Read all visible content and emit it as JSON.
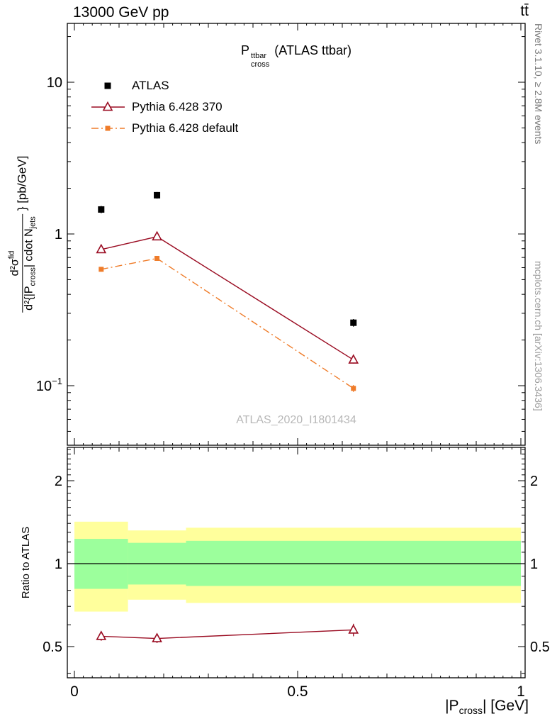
{
  "header": {
    "left": "13000 GeV pp",
    "right": "tt̄"
  },
  "credits": {
    "rivet": "Rivet 3.1.10, ≥ 2.8M events",
    "mcplots": "mcplots.cern.ch [arXiv:1306.3436]"
  },
  "colors": {
    "atlas": "#000000",
    "pythia370": "#9a0c22",
    "pythia_default": "#ef7c2a",
    "band_yellow": "#ffff9c",
    "band_green": "#9cff9c",
    "watermark": "#b8b8b8"
  },
  "main_plot": {
    "title": {
      "base": "P",
      "sup": "ttbar",
      "sub": "cross",
      "suffix": " (ATLAS ttbar)"
    },
    "watermark": "ATLAS_2020_I1801434",
    "ylabel": {
      "numerator": "d²σ",
      "numerator_sup": "fid",
      "den_pre": "d²{|P",
      "den_sub1": "cross",
      "den_mid": "| cdot N",
      "den_sub2": "jets",
      "suffix": "} [pb/GeV]"
    }
  },
  "ratio_plot": {
    "ylabel": "Ratio to ATLAS"
  },
  "xaxis": {
    "pre": "|P",
    "sub": "cross",
    "post": "| [GeV]"
  },
  "legend": {
    "items": [
      {
        "label": "ATLAS",
        "marker": "square-filled",
        "color_key": "atlas",
        "line": "none"
      },
      {
        "label": "Pythia 6.428 370",
        "marker": "triangle-open",
        "color_key": "pythia370",
        "line": "solid"
      },
      {
        "label": "Pythia 6.428 default",
        "marker": "square-filled-small",
        "color_key": "pythia_default",
        "line": "dashdot"
      }
    ]
  },
  "chart_data": [
    {
      "type": "line",
      "title": "P_cross^ttbar (ATLAS ttbar)",
      "ylabel": "d²σ^fid / d²{|P_cross| cdot N_jets} [pb/GeV]",
      "xlabel": "",
      "ylog": true,
      "xlim": [
        -0.016,
        1.01
      ],
      "ylim": [
        0.041,
        24.5
      ],
      "x_ticks": [
        0,
        0.5,
        1
      ],
      "y_ticks": [
        {
          "value": 10,
          "label": "10",
          "sup": ""
        },
        {
          "value": 1,
          "label": "1",
          "sup": ""
        },
        {
          "value": 0.1,
          "label": "10",
          "sup": "−1"
        }
      ],
      "series": [
        {
          "name": "ATLAS",
          "marker": "square-filled",
          "color_key": "atlas",
          "draw_line": false,
          "dash": "none",
          "x": [
            0.06,
            0.185,
            0.625
          ],
          "y": [
            1.45,
            1.8,
            0.26
          ],
          "yerr": [
            0.08,
            0.09,
            0.015
          ]
        },
        {
          "name": "Pythia 6.428 370",
          "marker": "triangle-open",
          "color_key": "pythia370",
          "draw_line": true,
          "dash": "solid",
          "x": [
            0.06,
            0.185,
            0.625
          ],
          "y": [
            0.79,
            0.96,
            0.148
          ],
          "yerr": [
            0.025,
            0.03,
            0.008
          ]
        },
        {
          "name": "Pythia 6.428 default",
          "marker": "square-filled-small",
          "color_key": "pythia_default",
          "draw_line": true,
          "dash": "dashdot",
          "x": [
            0.06,
            0.185,
            0.625
          ],
          "y": [
            0.585,
            0.69,
            0.096
          ],
          "yerr": [
            0.02,
            0.02,
            0.005
          ]
        }
      ]
    },
    {
      "type": "ratio",
      "ylabel": "Ratio to ATLAS",
      "xlabel": "|P_cross| [GeV]",
      "ylog": true,
      "xlim": [
        -0.016,
        1.01
      ],
      "ylim": [
        0.385,
        2.64
      ],
      "x_ticks": [
        0,
        0.5,
        1
      ],
      "x_tick_labels": [
        "0",
        "0.5",
        "1"
      ],
      "y_ticks": [
        {
          "value": 0.5,
          "label": "0.5"
        },
        {
          "value": 1,
          "label": "1"
        },
        {
          "value": 2,
          "label": "2"
        }
      ],
      "reference_line": 1,
      "bands": [
        {
          "color_key": "band_yellow",
          "edges": [
            0,
            0.12,
            0.25,
            1.0
          ],
          "lo": [
            0.67,
            0.74,
            0.72
          ],
          "hi": [
            1.42,
            1.32,
            1.35
          ]
        },
        {
          "color_key": "band_green",
          "edges": [
            0,
            0.12,
            0.25,
            1.0
          ],
          "lo": [
            0.81,
            0.84,
            0.83
          ],
          "hi": [
            1.23,
            1.19,
            1.21
          ]
        }
      ],
      "series": [
        {
          "name": "Pythia 6.428 370 / ATLAS",
          "marker": "triangle-open",
          "color_key": "pythia370",
          "draw_line": true,
          "dash": "solid",
          "x": [
            0.06,
            0.185,
            0.625
          ],
          "y": [
            0.545,
            0.535,
            0.575
          ],
          "yerr": [
            0.02,
            0.02,
            0.03
          ]
        }
      ]
    }
  ]
}
